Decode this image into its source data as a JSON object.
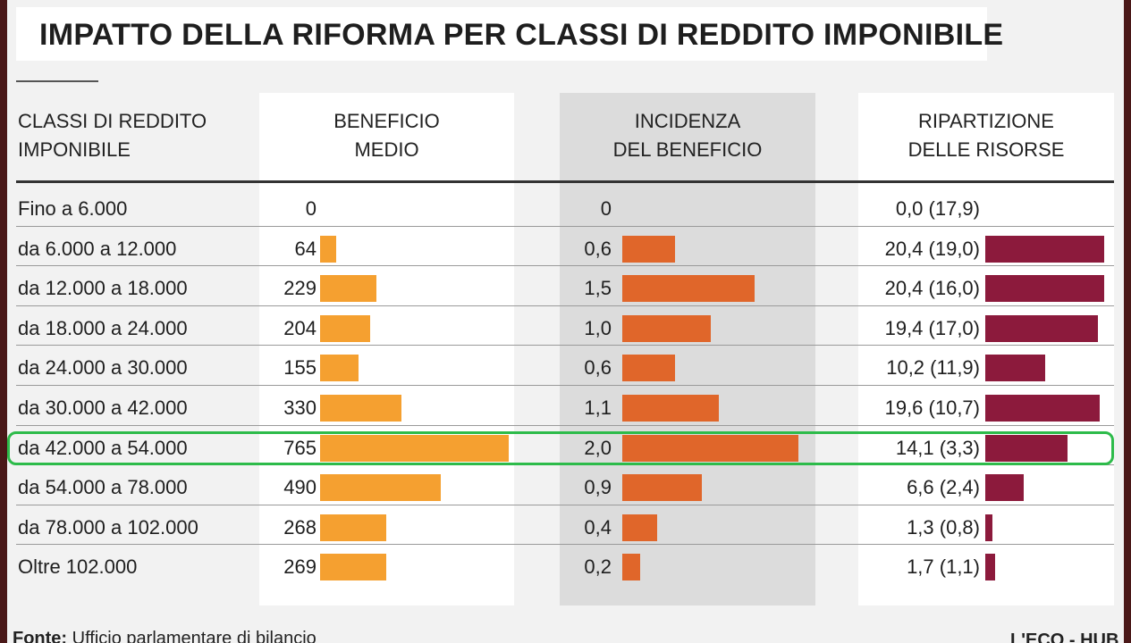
{
  "chart_data": {
    "type": "table",
    "title": "IMPATTO DELLA RIFORMA PER CLASSI DI REDDITO IMPONIBILE",
    "columns": [
      [
        "CLASSI DI REDDITO",
        "IMPONIBILE"
      ],
      [
        "BENEFICIO",
        "MEDIO"
      ],
      [
        "INCIDENZA",
        "DEL BENEFICIO"
      ],
      [
        "RIPARTIZIONE",
        "DELLE RISORSE"
      ]
    ],
    "categories": [
      "Fino a 6.000",
      "da 6.000 a 12.000",
      "da 12.000 a 18.000",
      "da 18.000 a 24.000",
      "da 24.000 a 30.000",
      "da 30.000 a 42.000",
      "da 42.000 a 54.000",
      "da 54.000 a 78.000",
      "da 78.000 a 102.000",
      "Oltre 102.000"
    ],
    "series": [
      {
        "values": [
          0,
          64,
          229,
          204,
          155,
          330,
          765,
          490,
          268,
          269
        ],
        "labels": [
          "0",
          "64",
          "229",
          "204",
          "155",
          "330",
          "765",
          "490",
          "268",
          "269"
        ]
      },
      {
        "values": [
          0,
          0.6,
          1.5,
          1.0,
          0.6,
          1.1,
          2.0,
          0.9,
          0.4,
          0.2
        ],
        "labels": [
          "0",
          "0,6",
          "1,5",
          "1,0",
          "0,6",
          "1,1",
          "2,0",
          "0,9",
          "0,4",
          "0,2"
        ]
      },
      {
        "values": [
          0.0,
          20.4,
          20.4,
          19.4,
          10.2,
          19.6,
          14.1,
          6.6,
          1.3,
          1.7
        ],
        "secondary": [
          17.9,
          19.0,
          16.0,
          17.0,
          11.9,
          10.7,
          3.3,
          2.4,
          0.8,
          1.1
        ],
        "labels": [
          "0,0 (17,9)",
          "20,4 (19,0)",
          "20,4 (16,0)",
          "19,4 (17,0)",
          "10,2 (11,9)",
          "19,6 (10,7)",
          "14,1 (3,3)",
          "6,6 (2,4)",
          "1,3 (0,8)",
          "1,7 (1,1)"
        ]
      }
    ],
    "highlighted_category": "da 42.000 a 54.000",
    "colors": {
      "beneficio": "#f5a030",
      "incidenza": "#e0662a",
      "ripartizione": "#8c1a3c",
      "highlight": "#2dbb4a"
    }
  },
  "footer": {
    "source_label": "Fonte:",
    "source_text": "Ufficio parlamentare di bilancio",
    "brand": "L'ECO - HUB"
  }
}
